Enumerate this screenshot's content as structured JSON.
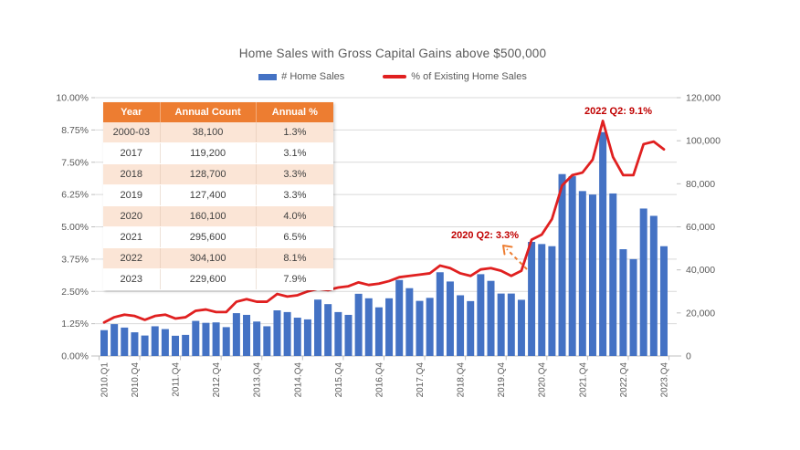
{
  "chart_data": {
    "type": "combo_bar_line",
    "title": "Home Sales with Gross Capital Gains above $500,000",
    "legend_position": "top",
    "grid": true,
    "x": [
      "2010.Q1",
      "2010.Q2",
      "2010.Q3",
      "2010.Q4",
      "2011.Q1",
      "2011.Q2",
      "2011.Q3",
      "2011.Q4",
      "2012.Q1",
      "2012.Q2",
      "2012.Q3",
      "2012.Q4",
      "2013.Q1",
      "2013.Q2",
      "2013.Q3",
      "2013.Q4",
      "2014.Q1",
      "2014.Q2",
      "2014.Q3",
      "2014.Q4",
      "2015.Q1",
      "2015.Q2",
      "2015.Q3",
      "2015.Q4",
      "2016.Q1",
      "2016.Q2",
      "2016.Q3",
      "2016.Q4",
      "2017.Q1",
      "2017.Q2",
      "2017.Q3",
      "2017.Q4",
      "2018.Q1",
      "2018.Q2",
      "2018.Q3",
      "2018.Q4",
      "2019.Q1",
      "2019.Q2",
      "2019.Q3",
      "2019.Q4",
      "2020.Q1",
      "2020.Q2",
      "2020.Q3",
      "2020.Q4",
      "2021.Q1",
      "2021.Q2",
      "2021.Q3",
      "2021.Q4",
      "2022.Q1",
      "2022.Q2",
      "2022.Q3",
      "2022.Q4",
      "2023.Q1",
      "2023.Q2",
      "2023.Q3",
      "2023.Q4"
    ],
    "x_tick_indices": [
      0,
      3,
      7,
      11,
      15,
      19,
      23,
      27,
      31,
      35,
      39,
      43,
      47,
      51,
      55
    ],
    "x_tick_labels": [
      "2010.Q1",
      "2010.Q4",
      "2011.Q4",
      "2012.Q4",
      "2013.Q4",
      "2014.Q4",
      "2015.Q4",
      "2016.Q4",
      "2017.Q4",
      "2018.Q4",
      "2019.Q4",
      "2020.Q4",
      "2021.Q4",
      "2022.Q4",
      "2023.Q4"
    ],
    "series": [
      {
        "name": "# Home Sales",
        "type": "bar",
        "axis": "right",
        "color": "#4472C4",
        "values": [
          12000,
          14800,
          13200,
          11000,
          9500,
          13800,
          12500,
          9400,
          9800,
          16300,
          15400,
          15600,
          13400,
          19900,
          19100,
          16000,
          13800,
          21200,
          20400,
          17800,
          17000,
          26200,
          24100,
          20400,
          19100,
          28900,
          26800,
          22600,
          26800,
          35300,
          31500,
          25600,
          27000,
          38900,
          34600,
          28200,
          25500,
          38000,
          34900,
          29000,
          29000,
          26100,
          53000,
          52000,
          51000,
          84500,
          83500,
          76600,
          75000,
          104000,
          75500,
          49600,
          45000,
          68500,
          65100,
          51000
        ]
      },
      {
        "name": "% of Existing Home Sales",
        "type": "line",
        "axis": "left",
        "color": "#E02020",
        "values": [
          1.3,
          1.5,
          1.6,
          1.55,
          1.4,
          1.55,
          1.6,
          1.45,
          1.5,
          1.75,
          1.8,
          1.7,
          1.7,
          2.1,
          2.2,
          2.1,
          2.1,
          2.4,
          2.3,
          2.35,
          2.5,
          2.6,
          2.55,
          2.65,
          2.7,
          2.85,
          2.75,
          2.8,
          2.9,
          3.05,
          3.1,
          3.15,
          3.2,
          3.5,
          3.4,
          3.2,
          3.1,
          3.35,
          3.4,
          3.3,
          3.1,
          3.3,
          4.5,
          4.7,
          5.3,
          6.6,
          7.0,
          7.1,
          7.6,
          9.1,
          7.7,
          7.0,
          7.0,
          8.2,
          8.3,
          8.0
        ]
      }
    ],
    "left_axis": {
      "min": 0,
      "max": 10,
      "step": 1.25,
      "tick_labels": [
        "10.00%",
        "8.75%",
        "7.50%",
        "6.25%",
        "5.00%",
        "3.75%",
        "2.50%",
        "1.25%",
        "0.00%"
      ]
    },
    "right_axis": {
      "min": 0,
      "max": 120000,
      "step": 20000,
      "tick_labels": [
        "120,000",
        "100,000",
        "80,000",
        "60,000",
        "40,000",
        "20,000",
        "0"
      ]
    },
    "annotations": [
      {
        "text": "2022 Q2: 9.1%",
        "target": "2022.Q2",
        "value": "9.1%",
        "color": "#C00000"
      },
      {
        "text": "2020 Q2: 3.3%",
        "target": "2020.Q2",
        "value": "3.3%",
        "color": "#C00000",
        "arrow": true,
        "arrow_color": "#ED7D31"
      }
    ]
  },
  "table": {
    "headers": [
      "Year",
      "Annual Count",
      "Annual %"
    ],
    "rows": [
      [
        "2000-03",
        "38,100",
        "1.3%"
      ],
      [
        "2017",
        "119,200",
        "3.1%"
      ],
      [
        "2018",
        "128,700",
        "3.3%"
      ],
      [
        "2019",
        "127,400",
        "3.3%"
      ],
      [
        "2020",
        "160,100",
        "4.0%"
      ],
      [
        "2021",
        "295,600",
        "6.5%"
      ],
      [
        "2022",
        "304,100",
        "8.1%"
      ],
      [
        "2023",
        "229,600",
        "7.9%"
      ]
    ],
    "header_bg": "#ED7D31",
    "alt_row_bg": "#FBE5D6"
  },
  "colors": {
    "axis_text": "#595959",
    "gridline": "#D9D9D9",
    "axis_line": "#BFBFBF"
  }
}
